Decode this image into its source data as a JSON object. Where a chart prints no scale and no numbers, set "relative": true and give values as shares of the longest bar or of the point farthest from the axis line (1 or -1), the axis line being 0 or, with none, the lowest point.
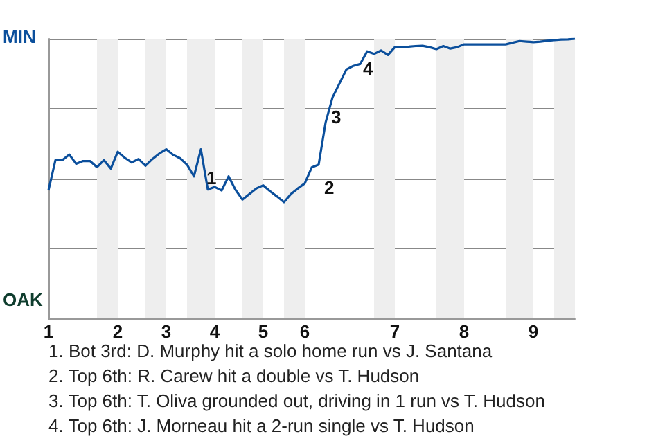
{
  "chart_data": {
    "type": "line",
    "categories": [
      "1",
      null,
      null,
      null,
      null,
      null,
      null,
      null,
      null,
      null,
      "2",
      null,
      null,
      null,
      null,
      null,
      null,
      "3",
      null,
      null,
      null,
      null,
      null,
      null,
      "4",
      null,
      null,
      null,
      null,
      null,
      null,
      "5",
      null,
      null,
      null,
      null,
      null,
      "6",
      null,
      null,
      null,
      null,
      null,
      null,
      null,
      null,
      null,
      null,
      null,
      null,
      "7",
      null,
      null,
      null,
      null,
      null,
      null,
      null,
      null,
      null,
      "8",
      null,
      null,
      null,
      null,
      null,
      null,
      null,
      null,
      null,
      "9",
      null,
      null,
      null,
      null,
      null,
      null
    ],
    "values": [
      0.458,
      0.566,
      0.566,
      0.586,
      0.553,
      0.563,
      0.563,
      0.541,
      0.566,
      0.536,
      0.596,
      0.575,
      0.558,
      0.57,
      0.546,
      0.57,
      0.59,
      0.605,
      0.585,
      0.573,
      0.55,
      0.508,
      0.605,
      0.461,
      0.47,
      0.458,
      0.508,
      0.46,
      0.425,
      0.445,
      0.465,
      0.476,
      0.455,
      0.436,
      0.416,
      0.445,
      0.465,
      0.483,
      0.54,
      0.55,
      0.7,
      0.79,
      0.84,
      0.89,
      0.903,
      0.91,
      0.955,
      0.946,
      0.958,
      0.942,
      0.97,
      0.971,
      0.972,
      0.974,
      0.975,
      0.97,
      0.963,
      0.974,
      0.965,
      0.97,
      0.98,
      0.98,
      0.98,
      0.98,
      0.98,
      0.98,
      0.98,
      0.986,
      0.992,
      0.99,
      0.988,
      0.99,
      0.993,
      0.995,
      0.997,
      0.998,
      1
    ],
    "color": "#0b4f9c",
    "relative": true,
    "grid": "y",
    "marker": "none",
    "annotations": [
      "MIN",
      "OAK",
      "1",
      "2",
      "3",
      "4",
      "1. Bot 3rd: D. Murphy hit a solo home run vs J. Santana",
      "2. Top 6th: R. Carew hit a double vs T. Hudson",
      "3. Top 6th: T. Oliva grounded out, driving in 1 run vs T. Hudson",
      "4. Top 6th: J. Morneau hit a 2-run single vs T. Hudson"
    ]
  }
}
